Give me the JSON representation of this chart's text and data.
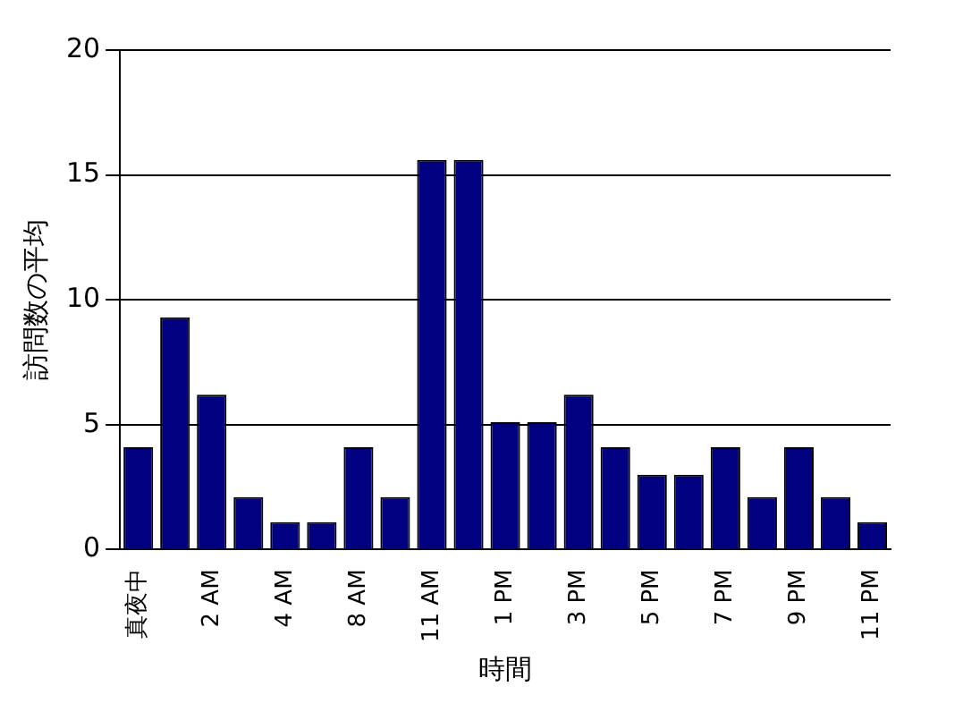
{
  "chart_data": {
    "type": "bar",
    "xlabel": "時間",
    "ylabel": "訪問数の平均",
    "categories": [
      "真夜中",
      null,
      "2 AM",
      null,
      "4 AM",
      null,
      "8 AM",
      null,
      "11 AM",
      null,
      "1 PM",
      null,
      "3 PM",
      null,
      "5 PM",
      null,
      "7 PM",
      null,
      "9 PM",
      null,
      "11 PM"
    ],
    "values": [
      4.1,
      9.3,
      6.2,
      2.1,
      1.1,
      1.1,
      4.1,
      2.1,
      15.6,
      15.6,
      5.1,
      5.1,
      6.2,
      4.1,
      3.0,
      3.0,
      4.1,
      2.1,
      4.1,
      2.1,
      1.1
    ],
    "color": "#000080",
    "ylim": [
      0,
      20
    ],
    "yticks": [
      0,
      5,
      10,
      15,
      20
    ],
    "grid": "y",
    "legend": false
  }
}
